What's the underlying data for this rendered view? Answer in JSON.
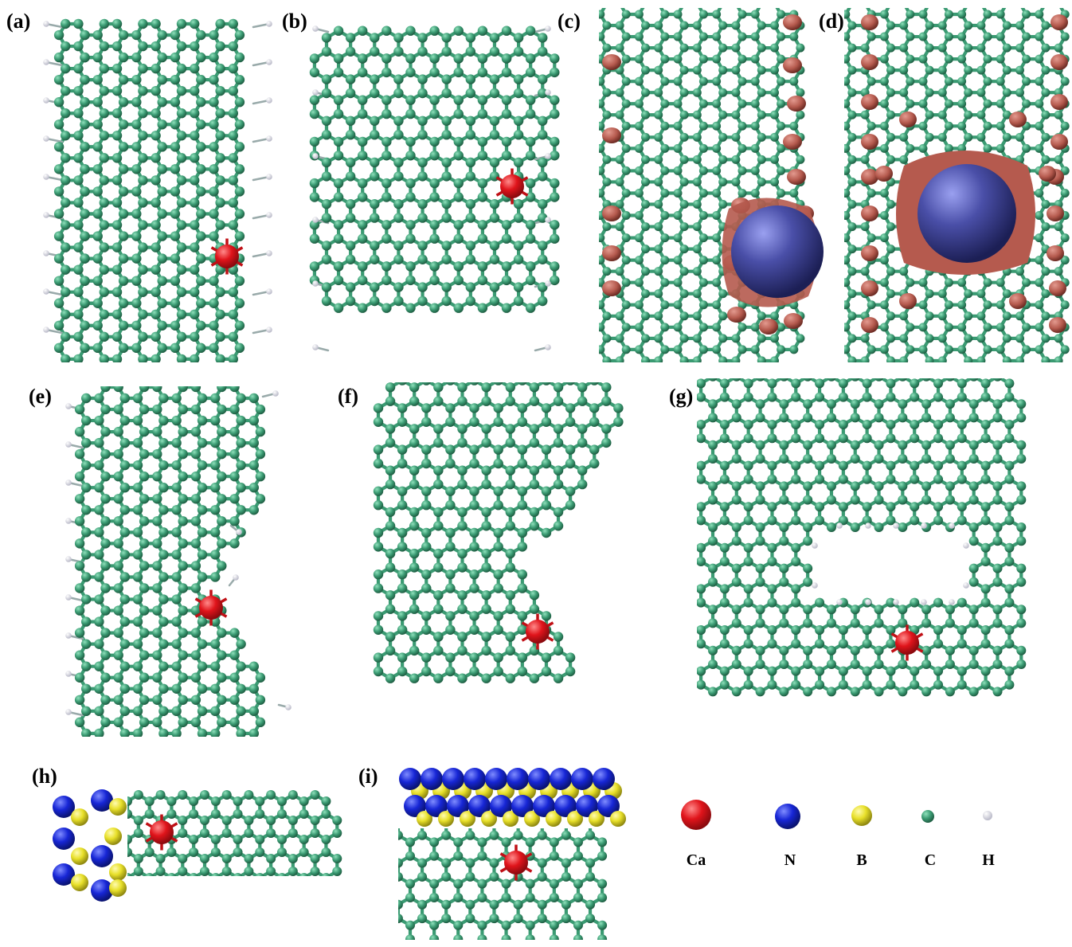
{
  "panel_labels": {
    "a": "(a)",
    "b": "(b)",
    "c": "(c)",
    "d": "(d)",
    "e": "(e)",
    "f": "(f)",
    "g": "(g)",
    "h": "(h)",
    "i": "(i)"
  },
  "legend": [
    {
      "symbol": "Ca",
      "color": "#e0141b"
    },
    {
      "symbol": "N",
      "color": "#1726d6"
    },
    {
      "symbol": "B",
      "color": "#e8e02a"
    },
    {
      "symbol": "C",
      "color": "#3a9a72"
    },
    {
      "symbol": "H",
      "color": "#e4e4ee"
    }
  ],
  "colors": {
    "carbon": "#3a9a72",
    "carbon_dark": "#22664a",
    "hydrogen": "#e4e4ee",
    "calcium": "#e0141b",
    "nitrogen": "#1726d6",
    "boron": "#e8e02a",
    "density_positive": "#b55a4e",
    "density_negative": "#4a4fa8"
  }
}
